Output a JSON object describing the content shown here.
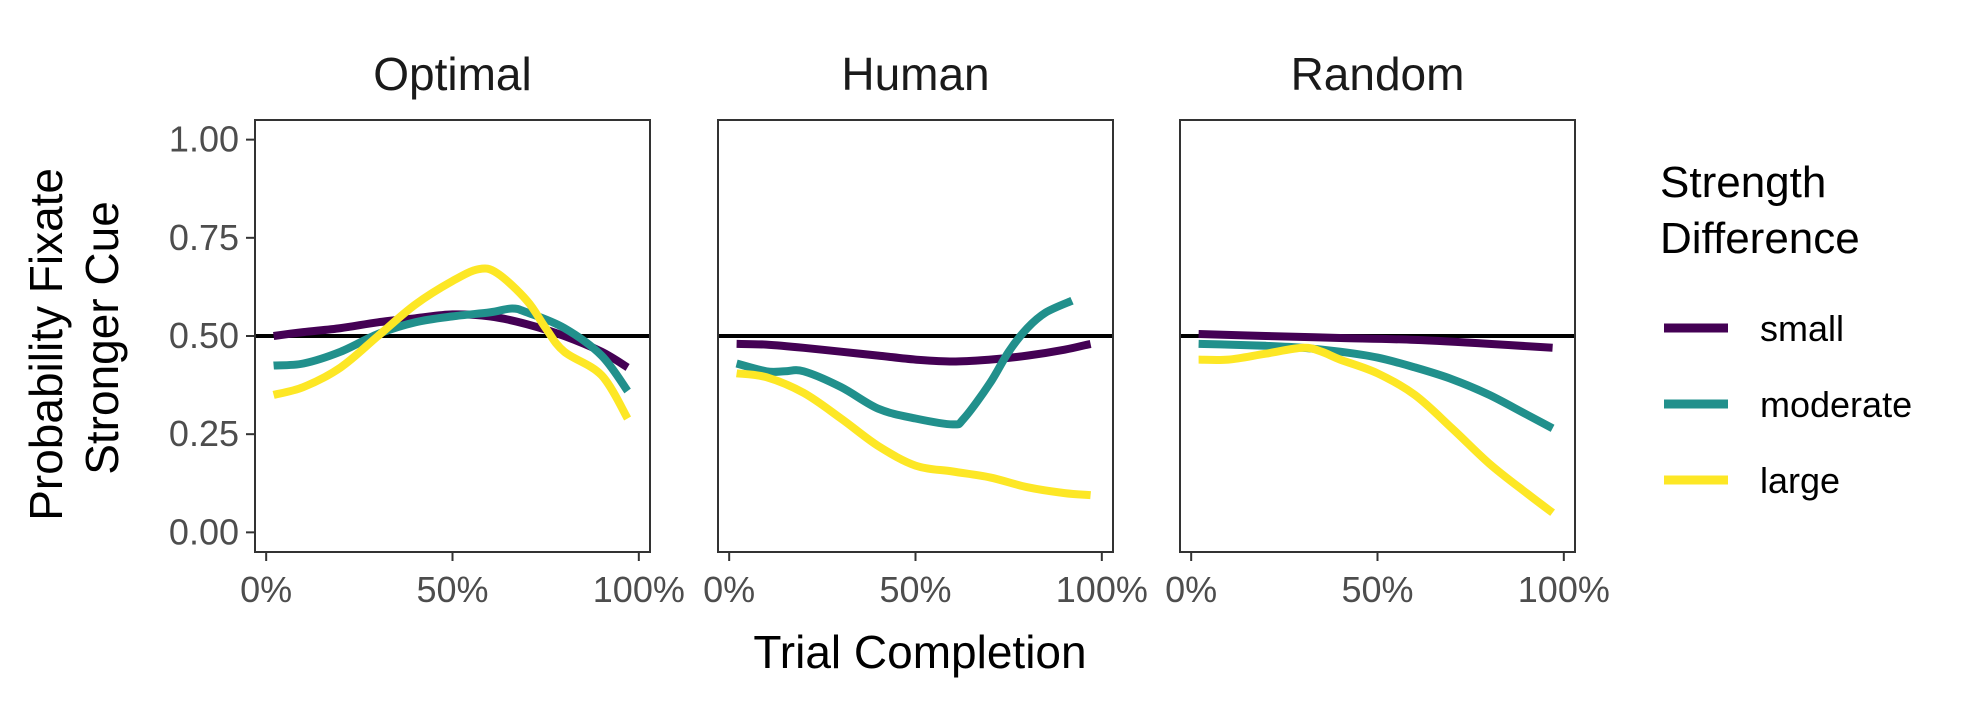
{
  "chart_data": {
    "type": "line",
    "facets": [
      "Optimal",
      "Human",
      "Random"
    ],
    "xlabel": "Trial Completion",
    "ylabel_lines": [
      "Probability Fixate",
      "Stronger Cue"
    ],
    "x_ticks": [
      "0%",
      "50%",
      "100%"
    ],
    "x_tick_values": [
      0,
      0.5,
      1
    ],
    "y_ticks": [
      "0.00",
      "0.25",
      "0.50",
      "0.75",
      "1.00"
    ],
    "y_tick_values": [
      0,
      0.25,
      0.5,
      0.75,
      1
    ],
    "xlim": [
      -0.03,
      1.03
    ],
    "ylim": [
      -0.05,
      1.05
    ],
    "reference_line_y": 0.5,
    "legend": {
      "title_lines": [
        "Strength",
        "Difference"
      ],
      "position": "right"
    },
    "series": [
      {
        "name": "small",
        "color": "#440154"
      },
      {
        "name": "moderate",
        "color": "#21908C"
      },
      {
        "name": "large",
        "color": "#FDE725"
      }
    ],
    "panels": [
      {
        "facet": "Optimal",
        "lines": [
          {
            "series": "small",
            "x": [
              0.02,
              0.1,
              0.2,
              0.3,
              0.4,
              0.5,
              0.6,
              0.7,
              0.8,
              0.9,
              0.97
            ],
            "y": [
              0.5,
              0.51,
              0.52,
              0.535,
              0.545,
              0.555,
              0.55,
              0.53,
              0.5,
              0.46,
              0.42
            ]
          },
          {
            "series": "moderate",
            "x": [
              0.02,
              0.1,
              0.2,
              0.3,
              0.4,
              0.5,
              0.6,
              0.66,
              0.7,
              0.8,
              0.9,
              0.97
            ],
            "y": [
              0.425,
              0.43,
              0.46,
              0.505,
              0.535,
              0.55,
              0.56,
              0.57,
              0.56,
              0.52,
              0.45,
              0.36
            ]
          },
          {
            "series": "large",
            "x": [
              0.02,
              0.1,
              0.2,
              0.3,
              0.4,
              0.5,
              0.57,
              0.62,
              0.7,
              0.75,
              0.8,
              0.9,
              0.97
            ],
            "y": [
              0.35,
              0.37,
              0.42,
              0.5,
              0.58,
              0.64,
              0.67,
              0.66,
              0.59,
              0.52,
              0.46,
              0.4,
              0.29
            ]
          }
        ]
      },
      {
        "facet": "Human",
        "lines": [
          {
            "series": "small",
            "x": [
              0.02,
              0.1,
              0.2,
              0.3,
              0.4,
              0.5,
              0.6,
              0.7,
              0.8,
              0.9,
              0.97
            ],
            "y": [
              0.48,
              0.478,
              0.47,
              0.46,
              0.45,
              0.44,
              0.435,
              0.44,
              0.45,
              0.465,
              0.48
            ]
          },
          {
            "series": "moderate",
            "x": [
              0.02,
              0.1,
              0.15,
              0.2,
              0.3,
              0.4,
              0.5,
              0.6,
              0.63,
              0.7,
              0.75,
              0.8,
              0.85,
              0.92
            ],
            "y": [
              0.43,
              0.41,
              0.41,
              0.41,
              0.37,
              0.315,
              0.29,
              0.275,
              0.29,
              0.38,
              0.46,
              0.52,
              0.56,
              0.59
            ]
          },
          {
            "series": "large",
            "x": [
              0.02,
              0.1,
              0.2,
              0.3,
              0.4,
              0.5,
              0.6,
              0.7,
              0.8,
              0.9,
              0.97
            ],
            "y": [
              0.405,
              0.395,
              0.355,
              0.29,
              0.22,
              0.17,
              0.155,
              0.14,
              0.115,
              0.1,
              0.095
            ]
          }
        ]
      },
      {
        "facet": "Random",
        "lines": [
          {
            "series": "small",
            "x": [
              0.02,
              0.2,
              0.4,
              0.6,
              0.8,
              0.97
            ],
            "y": [
              0.505,
              0.5,
              0.495,
              0.49,
              0.48,
              0.47
            ]
          },
          {
            "series": "moderate",
            "x": [
              0.02,
              0.1,
              0.2,
              0.3,
              0.4,
              0.5,
              0.6,
              0.7,
              0.8,
              0.9,
              0.97
            ],
            "y": [
              0.48,
              0.478,
              0.475,
              0.47,
              0.46,
              0.445,
              0.42,
              0.39,
              0.35,
              0.3,
              0.265
            ]
          },
          {
            "series": "large",
            "x": [
              0.02,
              0.1,
              0.2,
              0.3,
              0.35,
              0.4,
              0.5,
              0.6,
              0.7,
              0.8,
              0.9,
              0.97
            ],
            "y": [
              0.44,
              0.44,
              0.455,
              0.47,
              0.46,
              0.44,
              0.405,
              0.35,
              0.265,
              0.175,
              0.1,
              0.05
            ]
          }
        ]
      }
    ]
  }
}
